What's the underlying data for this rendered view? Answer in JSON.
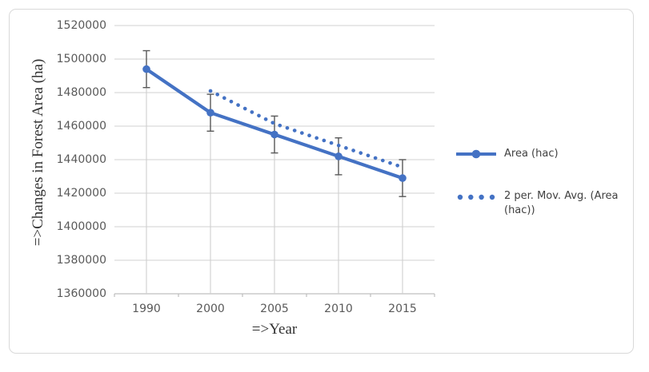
{
  "chart_data": {
    "type": "line",
    "title": "",
    "categories": [
      "1990",
      "2000",
      "2005",
      "2010",
      "2015"
    ],
    "series": [
      {
        "name": "Area (hac)",
        "values": [
          1494000,
          1468000,
          1455000,
          1442000,
          1429000
        ],
        "style": "solid-with-circle-markers",
        "error_bar_plus_minus": 11000
      },
      {
        "name": "2 per. Mov. Avg. (Area (hac))",
        "values": [
          null,
          1481000,
          1461500,
          1448500,
          1435500
        ],
        "style": "dotted-trendline"
      }
    ],
    "xlabel": "=>Year",
    "ylabel": "=>Changes in Forest Area (ha)",
    "ylim": [
      1360000,
      1520000
    ],
    "ytick_step": 20000,
    "ytick_labels": [
      "1360000",
      "1380000",
      "1400000",
      "1420000",
      "1440000",
      "1460000",
      "1480000",
      "1500000",
      "1520000"
    ],
    "grid": "horizontal-major-plus-category-drop-lines",
    "legend_position": "right",
    "colors": {
      "series": "#4472C4",
      "gridline": "#d9d9d9",
      "drop_line": "#cfcfcf",
      "axis_line": "#bfbfbf",
      "error_bar": "#595959",
      "tick_label": "#595959",
      "axis_title": "#333333",
      "legend_text": "#404040",
      "frame_border": "#d9d9d9"
    }
  },
  "legend": {
    "items": [
      {
        "label": "Area (hac)",
        "marker": "solid-line-with-circle"
      },
      {
        "label": "2 per. Mov. Avg. (Area (hac))",
        "marker": "four-dots"
      }
    ]
  }
}
